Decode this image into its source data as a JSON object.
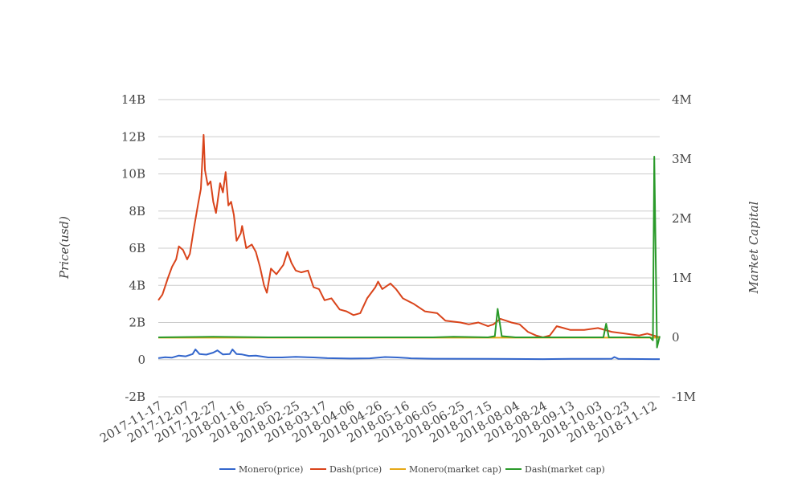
{
  "chart_data": {
    "type": "line",
    "title": "",
    "xlabel": "",
    "ylabel": "Price(usd)",
    "y2label": "Market Capital",
    "ylim": [
      -2000000000,
      14000000000
    ],
    "y2lim": [
      -1000000,
      4000000
    ],
    "y_ticks": [
      "14B",
      "12B",
      "10B",
      "8B",
      "6B",
      "4B",
      "2B",
      "0",
      "-2B"
    ],
    "y_tick_values": [
      14000000000,
      12000000000,
      10000000000,
      8000000000,
      6000000000,
      4000000000,
      2000000000,
      0,
      -2000000000
    ],
    "y2_ticks": [
      "4M",
      "3M",
      "2M",
      "1M",
      "0",
      "-1M"
    ],
    "y2_tick_values": [
      4000000,
      3000000,
      2000000,
      1000000,
      0,
      -1000000
    ],
    "x_start": "2017-11-17",
    "x_end": "2018-11-17",
    "x_ticks": [
      "2017-11-17",
      "2017-12-07",
      "2017-12-27",
      "2018-01-16",
      "2018-02-05",
      "2018-02-25",
      "2018-03-17",
      "2018-04-06",
      "2018-04-26",
      "2018-05-16",
      "2018-06-05",
      "2018-06-25",
      "2018-07-15",
      "2018-08-04",
      "2018-08-24",
      "2018-09-13",
      "2018-10-03",
      "2018-10-23",
      "2018-11-12"
    ],
    "grid": true,
    "legend_position": "bottom",
    "series": [
      {
        "name": "Monero(price)",
        "axis": "left",
        "color": "#3366cc",
        "points": [
          [
            "2017-11-17",
            80000000.0
          ],
          [
            "2017-11-22",
            130000000.0
          ],
          [
            "2017-11-27",
            110000000.0
          ],
          [
            "2017-12-02",
            220000000.0
          ],
          [
            "2017-12-07",
            180000000.0
          ],
          [
            "2017-12-12",
            300000000.0
          ],
          [
            "2017-12-14",
            550000000.0
          ],
          [
            "2017-12-17",
            300000000.0
          ],
          [
            "2017-12-22",
            270000000.0
          ],
          [
            "2017-12-27",
            380000000.0
          ],
          [
            "2017-12-30",
            500000000.0
          ],
          [
            "2018-01-03",
            280000000.0
          ],
          [
            "2018-01-08",
            300000000.0
          ],
          [
            "2018-01-10",
            550000000.0
          ],
          [
            "2018-01-13",
            300000000.0
          ],
          [
            "2018-01-17",
            280000000.0
          ],
          [
            "2018-01-22",
            200000000.0
          ],
          [
            "2018-01-27",
            220000000.0
          ],
          [
            "2018-02-05",
            120000000.0
          ],
          [
            "2018-02-15",
            120000000.0
          ],
          [
            "2018-02-25",
            150000000.0
          ],
          [
            "2018-03-10",
            120000000.0
          ],
          [
            "2018-03-20",
            80000000.0
          ],
          [
            "2018-04-06",
            60000000.0
          ],
          [
            "2018-04-20",
            70000000.0
          ],
          [
            "2018-05-01",
            140000000.0
          ],
          [
            "2018-05-10",
            120000000.0
          ],
          [
            "2018-05-20",
            70000000.0
          ],
          [
            "2018-06-05",
            50000000.0
          ],
          [
            "2018-07-15",
            40000000.0
          ],
          [
            "2018-08-24",
            30000000.0
          ],
          [
            "2018-09-13",
            40000000.0
          ],
          [
            "2018-10-03",
            40000000.0
          ],
          [
            "2018-10-13",
            50000000.0
          ],
          [
            "2018-10-15",
            140000000.0
          ],
          [
            "2018-10-18",
            40000000.0
          ],
          [
            "2018-11-12",
            30000000.0
          ],
          [
            "2018-11-17",
            30000000.0
          ]
        ]
      },
      {
        "name": "Dash(price)",
        "axis": "left",
        "color": "#d9441b",
        "points": [
          [
            "2017-11-17",
            3200000000.0
          ],
          [
            "2017-11-20",
            3500000000.0
          ],
          [
            "2017-11-24",
            4400000000.0
          ],
          [
            "2017-11-27",
            5000000000.0
          ],
          [
            "2017-11-30",
            5400000000.0
          ],
          [
            "2017-12-02",
            6100000000.0
          ],
          [
            "2017-12-05",
            5900000000.0
          ],
          [
            "2017-12-08",
            5400000000.0
          ],
          [
            "2017-12-10",
            5700000000.0
          ],
          [
            "2017-12-13",
            7100000000.0
          ],
          [
            "2017-12-16",
            8400000000.0
          ],
          [
            "2017-12-18",
            9200000000.0
          ],
          [
            "2017-12-20",
            12100000000.0
          ],
          [
            "2017-12-21",
            10200000000.0
          ],
          [
            "2017-12-23",
            9400000000.0
          ],
          [
            "2017-12-25",
            9600000000.0
          ],
          [
            "2017-12-27",
            8500000000.0
          ],
          [
            "2017-12-29",
            7900000000.0
          ],
          [
            "2018-01-01",
            9500000000.0
          ],
          [
            "2018-01-03",
            9000000000.0
          ],
          [
            "2018-01-05",
            10100000000.0
          ],
          [
            "2018-01-07",
            8300000000.0
          ],
          [
            "2018-01-09",
            8500000000.0
          ],
          [
            "2018-01-11",
            7800000000.0
          ],
          [
            "2018-01-13",
            6400000000.0
          ],
          [
            "2018-01-16",
            6800000000.0
          ],
          [
            "2018-01-17",
            7200000000.0
          ],
          [
            "2018-01-20",
            6000000000.0
          ],
          [
            "2018-01-24",
            6200000000.0
          ],
          [
            "2018-01-27",
            5800000000.0
          ],
          [
            "2018-01-30",
            5000000000.0
          ],
          [
            "2018-02-02",
            4000000000.0
          ],
          [
            "2018-02-04",
            3600000000.0
          ],
          [
            "2018-02-07",
            4900000000.0
          ],
          [
            "2018-02-11",
            4600000000.0
          ],
          [
            "2018-02-16",
            5100000000.0
          ],
          [
            "2018-02-19",
            5800000000.0
          ],
          [
            "2018-02-22",
            5200000000.0
          ],
          [
            "2018-02-25",
            4800000000.0
          ],
          [
            "2018-03-01",
            4700000000.0
          ],
          [
            "2018-03-06",
            4800000000.0
          ],
          [
            "2018-03-10",
            3900000000.0
          ],
          [
            "2018-03-14",
            3800000000.0
          ],
          [
            "2018-03-18",
            3200000000.0
          ],
          [
            "2018-03-23",
            3300000000.0
          ],
          [
            "2018-03-29",
            2700000000.0
          ],
          [
            "2018-04-03",
            2600000000.0
          ],
          [
            "2018-04-08",
            2400000000.0
          ],
          [
            "2018-04-13",
            2500000000.0
          ],
          [
            "2018-04-18",
            3300000000.0
          ],
          [
            "2018-04-24",
            3900000000.0
          ],
          [
            "2018-04-26",
            4200000000.0
          ],
          [
            "2018-04-29",
            3800000000.0
          ],
          [
            "2018-05-05",
            4100000000.0
          ],
          [
            "2018-05-09",
            3800000000.0
          ],
          [
            "2018-05-14",
            3300000000.0
          ],
          [
            "2018-05-22",
            3000000000.0
          ],
          [
            "2018-05-30",
            2600000000.0
          ],
          [
            "2018-06-08",
            2500000000.0
          ],
          [
            "2018-06-14",
            2100000000.0
          ],
          [
            "2018-06-25",
            2000000000.0
          ],
          [
            "2018-07-01",
            1900000000.0
          ],
          [
            "2018-07-08",
            2000000000.0
          ],
          [
            "2018-07-15",
            1800000000.0
          ],
          [
            "2018-07-19",
            1900000000.0
          ],
          [
            "2018-07-24",
            2200000000.0
          ],
          [
            "2018-08-01",
            2000000000.0
          ],
          [
            "2018-08-07",
            1900000000.0
          ],
          [
            "2018-08-13",
            1500000000.0
          ],
          [
            "2018-08-19",
            1300000000.0
          ],
          [
            "2018-08-24",
            1200000000.0
          ],
          [
            "2018-08-29",
            1300000000.0
          ],
          [
            "2018-09-03",
            1800000000.0
          ],
          [
            "2018-09-08",
            1700000000.0
          ],
          [
            "2018-09-13",
            1600000000.0
          ],
          [
            "2018-09-23",
            1600000000.0
          ],
          [
            "2018-10-03",
            1700000000.0
          ],
          [
            "2018-10-13",
            1500000000.0
          ],
          [
            "2018-10-23",
            1400000000.0
          ],
          [
            "2018-11-02",
            1300000000.0
          ],
          [
            "2018-11-08",
            1400000000.0
          ],
          [
            "2018-11-17",
            1200000000.0
          ]
        ]
      },
      {
        "name": "Monero(market cap)",
        "axis": "right",
        "color": "#e6a817",
        "points": [
          [
            "2017-11-17",
            -5000
          ],
          [
            "2018-02-05",
            -5000
          ],
          [
            "2018-05-16",
            -5000
          ],
          [
            "2018-08-24",
            -5000
          ],
          [
            "2018-11-17",
            -5000
          ]
        ]
      },
      {
        "name": "Dash(market cap)",
        "axis": "right",
        "color": "#2a9a2a",
        "points": [
          [
            "2017-11-17",
            0
          ],
          [
            "2017-12-07",
            5000
          ],
          [
            "2017-12-27",
            10000
          ],
          [
            "2018-01-16",
            5000
          ],
          [
            "2018-02-05",
            0
          ],
          [
            "2018-04-06",
            0
          ],
          [
            "2018-06-05",
            0
          ],
          [
            "2018-06-20",
            10000
          ],
          [
            "2018-07-15",
            0
          ],
          [
            "2018-07-20",
            20000
          ],
          [
            "2018-07-22",
            480000
          ],
          [
            "2018-07-25",
            20000
          ],
          [
            "2018-08-04",
            0
          ],
          [
            "2018-09-13",
            0
          ],
          [
            "2018-10-03",
            0
          ],
          [
            "2018-10-07",
            0
          ],
          [
            "2018-10-09",
            230000
          ],
          [
            "2018-10-11",
            0
          ],
          [
            "2018-10-23",
            0
          ],
          [
            "2018-11-10",
            0
          ],
          [
            "2018-11-12",
            -50000
          ],
          [
            "2018-11-13",
            3040000
          ],
          [
            "2018-11-15",
            -170000
          ],
          [
            "2018-11-17",
            20000
          ]
        ]
      }
    ]
  }
}
